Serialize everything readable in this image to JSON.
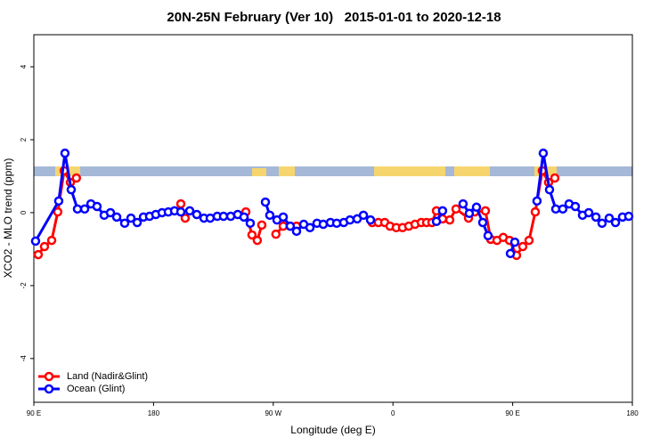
{
  "chart_data": {
    "type": "line",
    "title": "20N-25N February (Ver 10)   2015-01-01 to 2020-12-18",
    "x_label": "Longitude (deg E)",
    "y_label": "XCO2 - MLO trend (ppm)",
    "xlim": [
      90,
      540
    ],
    "ylim": [
      -5.2,
      4.88
    ],
    "xticks": [
      {
        "value": 90,
        "label": "90 E"
      },
      {
        "value": 180,
        "label": "180"
      },
      {
        "value": 270,
        "label": "90 W"
      },
      {
        "value": 360,
        "label": "0"
      },
      {
        "value": 450,
        "label": "90 E"
      },
      {
        "value": 540,
        "label": "180"
      }
    ],
    "yticks": [
      -4,
      -2,
      0,
      2,
      4
    ],
    "legend": "bottom-left",
    "series": [
      {
        "name": "Land (Nadir&Glint)",
        "color": "#ff0000",
        "x": [
          93.3,
          98,
          103.4,
          108,
          112.8,
          117.5,
          122,
          null,
          200.5,
          203.8,
          null,
          249.4,
          254,
          258,
          261.4,
          null,
          272,
          277.5,
          282.8,
          287.5,
          null,
          344.4,
          349,
          353.8,
          357.8,
          362.5,
          367.2,
          371.9,
          376.6,
          381.3,
          385.3,
          389.3,
          392.7,
          397.3,
          402.7,
          407.4,
          416.8,
          421.5,
          429.5,
          433.5,
          438.2,
          442.9,
          447.6,
          452.9,
          457.6,
          462.3,
          467,
          472.3,
          477,
          481.7
        ],
        "values": [
          -1.15,
          -0.93,
          -0.76,
          0.02,
          1.15,
          0.83,
          0.95,
          null,
          0.24,
          -0.15,
          null,
          0.02,
          -0.61,
          -0.76,
          -0.34,
          null,
          -0.59,
          -0.37,
          -0.37,
          -0.37,
          null,
          -0.27,
          -0.27,
          -0.27,
          -0.37,
          -0.41,
          -0.41,
          -0.37,
          -0.32,
          -0.27,
          -0.27,
          -0.27,
          0.05,
          -0.17,
          -0.2,
          0.1,
          -0.15,
          0.02,
          0.05,
          -0.73,
          -0.76,
          -0.68,
          -0.76,
          -1.17,
          -0.93,
          -0.76,
          0.02,
          1.15,
          0.83,
          0.95
        ]
      },
      {
        "name": "Ocean (Glint)",
        "color": "#0000ff",
        "x": [
          91.3,
          108.7,
          113.4,
          118.1,
          122.8,
          128.2,
          132.9,
          137.5,
          142.9,
          147.6,
          152.3,
          158.3,
          163,
          167.7,
          172.4,
          177,
          181.7,
          186.4,
          191.1,
          195.8,
          200.5,
          207.2,
          212.5,
          217.9,
          222.6,
          227.9,
          232.6,
          238,
          243.3,
          248,
          252.7,
          null,
          264.1,
          267.4,
          272.8,
          277.5,
          282.8,
          287.5,
          292.9,
          297.6,
          302.9,
          307.6,
          313,
          317.7,
          323,
          327.7,
          333.1,
          337.8,
          343.1,
          null,
          392.7,
          397.3,
          null,
          412.7,
          417.4,
          422.8,
          427.5,
          431.5,
          null,
          448.3,
          451.6,
          null,
          468.3,
          473,
          477.7,
          482.4,
          487.7,
          492.4,
          497.1,
          502.5,
          507.2,
          512.6,
          517.2,
          522.6,
          527.3,
          532.6,
          537.3
        ],
        "values": [
          -0.78,
          0.32,
          1.63,
          0.63,
          0.1,
          0.1,
          0.24,
          0.17,
          -0.07,
          0,
          -0.12,
          -0.29,
          -0.15,
          -0.27,
          -0.12,
          -0.1,
          -0.05,
          0,
          0.02,
          0.05,
          0.02,
          0.05,
          -0.05,
          -0.15,
          -0.15,
          -0.1,
          -0.1,
          -0.1,
          -0.05,
          -0.12,
          -0.29,
          null,
          0.29,
          -0.07,
          -0.2,
          -0.12,
          -0.37,
          -0.51,
          -0.32,
          -0.41,
          -0.29,
          -0.32,
          -0.27,
          -0.29,
          -0.27,
          -0.2,
          -0.17,
          -0.07,
          -0.2,
          null,
          -0.24,
          0.05,
          null,
          0.24,
          -0.02,
          0.15,
          -0.27,
          -0.63,
          null,
          -1.12,
          -0.81,
          null,
          0.32,
          1.63,
          0.63,
          0.1,
          0.1,
          0.24,
          0.17,
          -0.07,
          0,
          -0.12,
          -0.29,
          -0.15,
          -0.27,
          -0.12,
          -0.1
        ]
      }
    ]
  }
}
